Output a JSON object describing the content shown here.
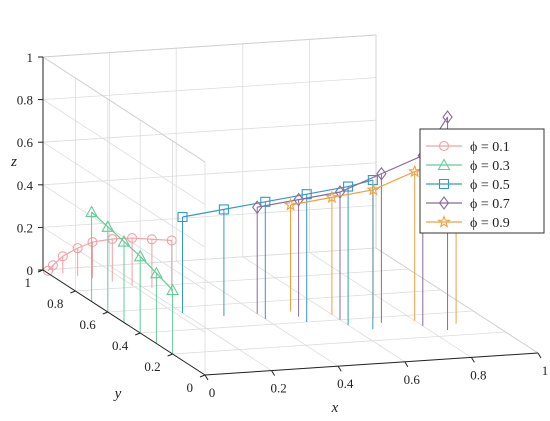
{
  "chart_data": {
    "type": "3d-stem",
    "title": "",
    "xlabel": "x",
    "ylabel": "y",
    "zlabel": "z",
    "xlim": [
      0,
      1
    ],
    "ylim": [
      0,
      1
    ],
    "zlim": [
      0,
      1
    ],
    "x_ticks": [
      "0",
      "0.2",
      "0.4",
      "0.6",
      "0.8",
      "1"
    ],
    "y_ticks": [
      "0",
      "0.2",
      "0.4",
      "0.6",
      "0.8",
      "1"
    ],
    "z_ticks": [
      "0",
      "0.2",
      "0.4",
      "0.6",
      "0.8",
      "1"
    ],
    "grid": true,
    "legend_position": "right",
    "legend": [
      {
        "label": "ϕ = 0.1",
        "color": "#f4a0a6",
        "marker": "circle"
      },
      {
        "label": "ϕ = 0.3",
        "color": "#66cc99",
        "marker": "triangle"
      },
      {
        "label": "ϕ = 0.5",
        "color": "#3399cc",
        "marker": "square"
      },
      {
        "label": "ϕ = 0.7",
        "color": "#8a6a9a",
        "marker": "diamond"
      },
      {
        "label": "ϕ = 0.9",
        "color": "#f0a040",
        "marker": "pentagram"
      }
    ],
    "series": [
      {
        "name": "ϕ = 0.1",
        "color": "#f4a0a6",
        "marker": "circle",
        "x": [
          0.01,
          0.02,
          0.04,
          0.07,
          0.1,
          0.14,
          0.18,
          0.22,
          0.26
        ],
        "y": [
          0.99,
          0.98,
          0.96,
          0.93,
          0.9,
          0.86,
          0.82,
          0.78,
          0.74
        ],
        "z": [
          0.0,
          0.03,
          0.08,
          0.13,
          0.17,
          0.2,
          0.22,
          0.23,
          0.24
        ]
      },
      {
        "name": "ϕ = 0.3",
        "color": "#66cc99",
        "marker": "triangle",
        "x": [
          0.0,
          0.0,
          0.0,
          0.0,
          0.0,
          0.0
        ],
        "y": [
          0.2,
          0.3,
          0.4,
          0.5,
          0.6,
          0.7
        ],
        "z": [
          0.3,
          0.33,
          0.36,
          0.38,
          0.4,
          0.42
        ]
      },
      {
        "name": "ϕ = 0.5",
        "color": "#3399cc",
        "marker": "square",
        "x": [
          0.2,
          0.3,
          0.4,
          0.5,
          0.6,
          0.65
        ],
        "y": [
          0.55,
          0.5,
          0.45,
          0.4,
          0.35,
          0.3
        ],
        "z": [
          0.45,
          0.5,
          0.55,
          0.6,
          0.65,
          0.7
        ]
      },
      {
        "name": "ϕ = 0.7",
        "color": "#8a6a9a",
        "marker": "diamond",
        "x": [
          0.4,
          0.5,
          0.6,
          0.7,
          0.8,
          0.85
        ],
        "y": [
          0.5,
          0.45,
          0.4,
          0.35,
          0.3,
          0.25
        ],
        "z": [
          0.5,
          0.55,
          0.6,
          0.7,
          0.8,
          1.0
        ]
      },
      {
        "name": "ϕ = 0.9",
        "color": "#f0a040",
        "marker": "pentagram",
        "x": [
          0.5,
          0.6,
          0.7,
          0.8,
          0.9
        ],
        "y": [
          0.5,
          0.45,
          0.4,
          0.35,
          0.3
        ],
        "z": [
          0.5,
          0.55,
          0.6,
          0.7,
          0.8
        ]
      }
    ]
  }
}
